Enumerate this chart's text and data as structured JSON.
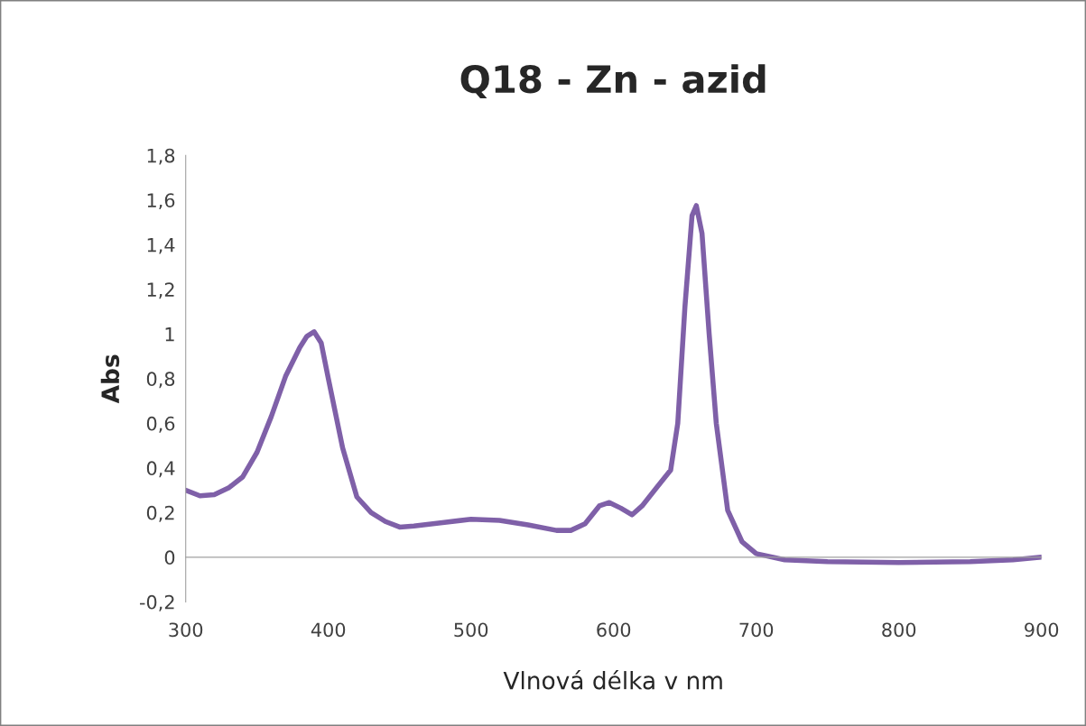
{
  "chart_data": {
    "type": "line",
    "title": "Q18 - Zn - azid",
    "xlabel": "Vlnová délka v nm",
    "ylabel": "Abs",
    "x": [
      300,
      310,
      320,
      330,
      340,
      350,
      360,
      370,
      380,
      385,
      390,
      395,
      400,
      410,
      420,
      430,
      440,
      450,
      460,
      480,
      500,
      520,
      540,
      560,
      570,
      580,
      590,
      597,
      605,
      613,
      620,
      630,
      640,
      645,
      650,
      655,
      658,
      662,
      667,
      672,
      680,
      690,
      700,
      720,
      750,
      800,
      850,
      880,
      900
    ],
    "series": [
      {
        "color": "#7f60a8",
        "values": [
          0.3,
          0.275,
          0.28,
          0.31,
          0.36,
          0.47,
          0.63,
          0.81,
          0.94,
          0.99,
          1.01,
          0.96,
          0.8,
          0.49,
          0.27,
          0.2,
          0.16,
          0.135,
          0.14,
          0.155,
          0.17,
          0.165,
          0.145,
          0.12,
          0.12,
          0.15,
          0.23,
          0.245,
          0.22,
          0.19,
          0.23,
          0.31,
          0.39,
          0.6,
          1.12,
          1.53,
          1.575,
          1.45,
          1.0,
          0.6,
          0.21,
          0.07,
          0.016,
          -0.012,
          -0.02,
          -0.024,
          -0.02,
          -0.012,
          0
        ]
      }
    ],
    "xlim": [
      300,
      900
    ],
    "xticks": [
      300,
      400,
      500,
      600,
      700,
      800,
      900
    ],
    "ylim": [
      -0.2,
      1.8
    ],
    "yticks": [
      {
        "value": -0.2,
        "label": "-0,2"
      },
      0,
      {
        "value": 0.2,
        "label": "0,2"
      },
      {
        "value": 0.4,
        "label": "0,4"
      },
      {
        "value": 0.6,
        "label": "0,6"
      },
      {
        "value": 0.8,
        "label": "0,8"
      },
      1,
      {
        "value": 1.2,
        "label": "1,2"
      },
      {
        "value": 1.4,
        "label": "1,4"
      },
      {
        "value": 1.6,
        "label": "1,6"
      },
      {
        "value": 1.8,
        "label": "1,8"
      }
    ],
    "legend": false,
    "line_style": "solid",
    "marker": "none"
  }
}
